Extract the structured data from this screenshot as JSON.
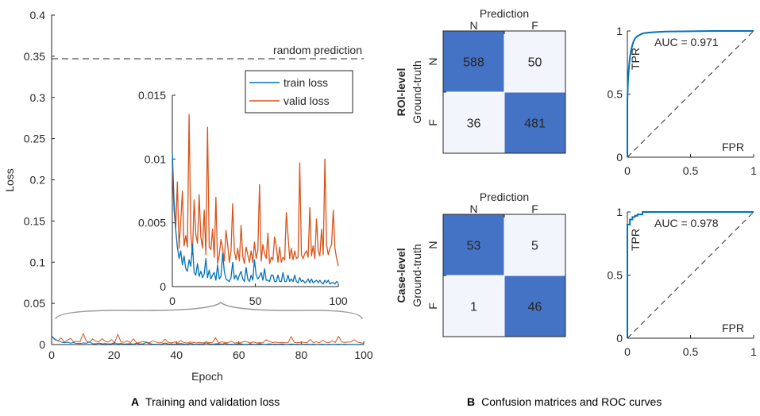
{
  "captions": {
    "a_letter": "A",
    "a_text": "Training and validation loss",
    "b_letter": "B",
    "b_text": "Confusion matrices and ROC curves"
  },
  "colors": {
    "train": "#0072BD",
    "valid": "#D95319",
    "cm_dark": "#4472C4",
    "cm_light": "#F2F5FB",
    "roc": "#0072BD"
  },
  "chart_data": [
    {
      "type": "line",
      "id": "main-loss",
      "title": "",
      "xlabel": "Epoch",
      "ylabel": "Loss",
      "xlim": [
        0,
        100
      ],
      "ylim": [
        0,
        0.4
      ],
      "xticks": [
        0,
        20,
        40,
        60,
        80,
        100
      ],
      "yticks": [
        0,
        0.05,
        0.1,
        0.15,
        0.2,
        0.25,
        0.3,
        0.35,
        0.4
      ],
      "ytick_labels": [
        "0",
        "0.05",
        "0.1",
        "0.15",
        "0.2",
        "0.25",
        "0.3",
        "0.35",
        "0.4"
      ],
      "reference_line": {
        "y": 0.347,
        "label": "random prediction",
        "style": "dashed"
      },
      "series": [
        {
          "name": "train loss",
          "color": "#0072BD",
          "values": [
            0.0105,
            0.0068,
            0.0045,
            0.0031,
            0.0022,
            0.0028,
            0.0017,
            0.0024,
            0.0014,
            0.0012,
            0.0021,
            0.0016,
            0.0033,
            0.0011,
            0.0009,
            0.0018,
            0.0008,
            0.0012,
            0.0007,
            0.001,
            0.0022,
            0.0007,
            0.0013,
            0.0006,
            0.0009,
            0.0011,
            0.0005,
            0.0017,
            0.0006,
            0.0008,
            0.0026,
            0.0012,
            0.0006,
            0.0005,
            0.0004,
            0.0007,
            0.0019,
            0.0006,
            0.0009,
            0.0005,
            0.0009,
            0.0012,
            0.0006,
            0.0004,
            0.0015,
            0.0006,
            0.0004,
            0.0009,
            0.0005,
            0.0021,
            0.0009,
            0.0006,
            0.0008,
            0.0011,
            0.0005,
            0.0014,
            0.0005,
            0.0005,
            0.0004,
            0.0009,
            0.0009,
            0.0004,
            0.0004,
            0.0009,
            0.0004,
            0.0004,
            0.0011,
            0.0004,
            0.0004,
            0.0009,
            0.0004,
            0.0006,
            0.0004,
            0.0009,
            0.0004,
            0.0003,
            0.0007,
            0.0004,
            0.0005,
            0.0003,
            0.0004,
            0.0006,
            0.0003,
            0.0006,
            0.0003,
            0.0004,
            0.0005,
            0.0003,
            0.0005,
            0.0003,
            0.0002,
            0.0005,
            0.0003,
            0.0005,
            0.0002,
            0.0003,
            0.0003,
            0.0002,
            0.0004,
            0.0003
          ]
        },
        {
          "name": "valid loss",
          "color": "#D95319",
          "values": [
            0.0095,
            0.006,
            0.0045,
            0.0082,
            0.003,
            0.0051,
            0.0075,
            0.0032,
            0.004,
            0.0031,
            0.0135,
            0.0042,
            0.0025,
            0.0068,
            0.0041,
            0.0034,
            0.0072,
            0.0039,
            0.003,
            0.006,
            0.0025,
            0.0125,
            0.0031,
            0.0029,
            0.0045,
            0.0023,
            0.007,
            0.0018,
            0.0025,
            0.0037,
            0.003,
            0.002,
            0.0044,
            0.0033,
            0.0019,
            0.0028,
            0.0065,
            0.0028,
            0.0021,
            0.003,
            0.002,
            0.0048,
            0.0024,
            0.0018,
            0.0031,
            0.0025,
            0.0019,
            0.0028,
            0.0019,
            0.0035,
            0.0022,
            0.0028,
            0.008,
            0.002,
            0.0033,
            0.0026,
            0.0022,
            0.0042,
            0.0018,
            0.0023,
            0.0021,
            0.0039,
            0.0032,
            0.0019,
            0.0031,
            0.0019,
            0.0023,
            0.0021,
            0.0058,
            0.004,
            0.0022,
            0.003,
            0.0021,
            0.0028,
            0.0022,
            0.0023,
            0.0097,
            0.0025,
            0.0022,
            0.0026,
            0.0028,
            0.0023,
            0.0062,
            0.0024,
            0.0032,
            0.0022,
            0.0053,
            0.0028,
            0.0024,
            0.0045,
            0.0025,
            0.01,
            0.0033,
            0.0025,
            0.003,
            0.0033,
            0.006,
            0.003,
            0.0022,
            0.0016
          ]
        }
      ]
    },
    {
      "type": "line",
      "id": "inset-loss",
      "title": "",
      "xlim": [
        0,
        100
      ],
      "ylim": [
        0,
        0.015
      ],
      "xticks": [
        0,
        50,
        100
      ],
      "yticks": [
        0,
        0.005,
        0.01,
        0.015
      ],
      "ytick_labels": [
        "0",
        "0.005",
        "0.01",
        "0.015"
      ],
      "legend": {
        "position": "top-right",
        "entries": [
          "train loss",
          "valid loss"
        ]
      },
      "note": "zoom of epochs 0-100 on main plot, same series"
    },
    {
      "type": "heatmap",
      "id": "cm-roi",
      "row_title": "ROI-level",
      "ylabel": "Ground-truth",
      "xlabel": "Prediction",
      "col_labels": [
        "N",
        "F"
      ],
      "row_labels": [
        "N",
        "F"
      ],
      "values": [
        [
          588,
          50
        ],
        [
          36,
          481
        ]
      ]
    },
    {
      "type": "line",
      "id": "roc-roi",
      "xlabel": "FPR",
      "ylabel": "TPR",
      "xlim": [
        0,
        1
      ],
      "ylim": [
        0,
        1
      ],
      "xticks": [
        0,
        0.5,
        1
      ],
      "yticks": [
        0,
        0.5,
        1
      ],
      "annotation": "AUC = 0.971",
      "series": [
        {
          "name": "ROC",
          "color": "#0072BD",
          "x": [
            0,
            0,
            0.005,
            0.01,
            0.015,
            0.02,
            0.03,
            0.04,
            0.05,
            0.06,
            0.08,
            0.1,
            0.12,
            0.15,
            0.2,
            0.3,
            0.5,
            0.7,
            1.0
          ],
          "y": [
            0,
            0.45,
            0.6,
            0.68,
            0.74,
            0.79,
            0.85,
            0.89,
            0.92,
            0.94,
            0.96,
            0.97,
            0.98,
            0.985,
            0.99,
            0.995,
            0.998,
            1.0,
            1.0
          ]
        },
        {
          "name": "chance",
          "style": "dashed",
          "x": [
            0,
            1
          ],
          "y": [
            0,
            1
          ]
        }
      ]
    },
    {
      "type": "heatmap",
      "id": "cm-case",
      "row_title": "Case-level",
      "ylabel": "Ground-truth",
      "xlabel": "Prediction",
      "col_labels": [
        "N",
        "F"
      ],
      "row_labels": [
        "N",
        "F"
      ],
      "values": [
        [
          53,
          5
        ],
        [
          1,
          46
        ]
      ]
    },
    {
      "type": "line",
      "id": "roc-case",
      "xlabel": "FPR",
      "ylabel": "TPR",
      "xlim": [
        0,
        1
      ],
      "ylim": [
        0,
        1
      ],
      "xticks": [
        0,
        0.5,
        1
      ],
      "yticks": [
        0,
        0.5,
        1
      ],
      "annotation": "AUC = 0.978",
      "series": [
        {
          "name": "ROC",
          "color": "#0072BD",
          "x": [
            0,
            0,
            0.02,
            0.02,
            0.04,
            0.04,
            0.06,
            0.06,
            0.08,
            0.08,
            0.12,
            0.12,
            1.0
          ],
          "y": [
            0,
            0.9,
            0.9,
            0.94,
            0.94,
            0.96,
            0.96,
            0.97,
            0.97,
            0.98,
            0.98,
            1.0,
            1.0
          ]
        },
        {
          "name": "chance",
          "style": "dashed",
          "x": [
            0,
            1
          ],
          "y": [
            0,
            1
          ]
        }
      ]
    }
  ]
}
